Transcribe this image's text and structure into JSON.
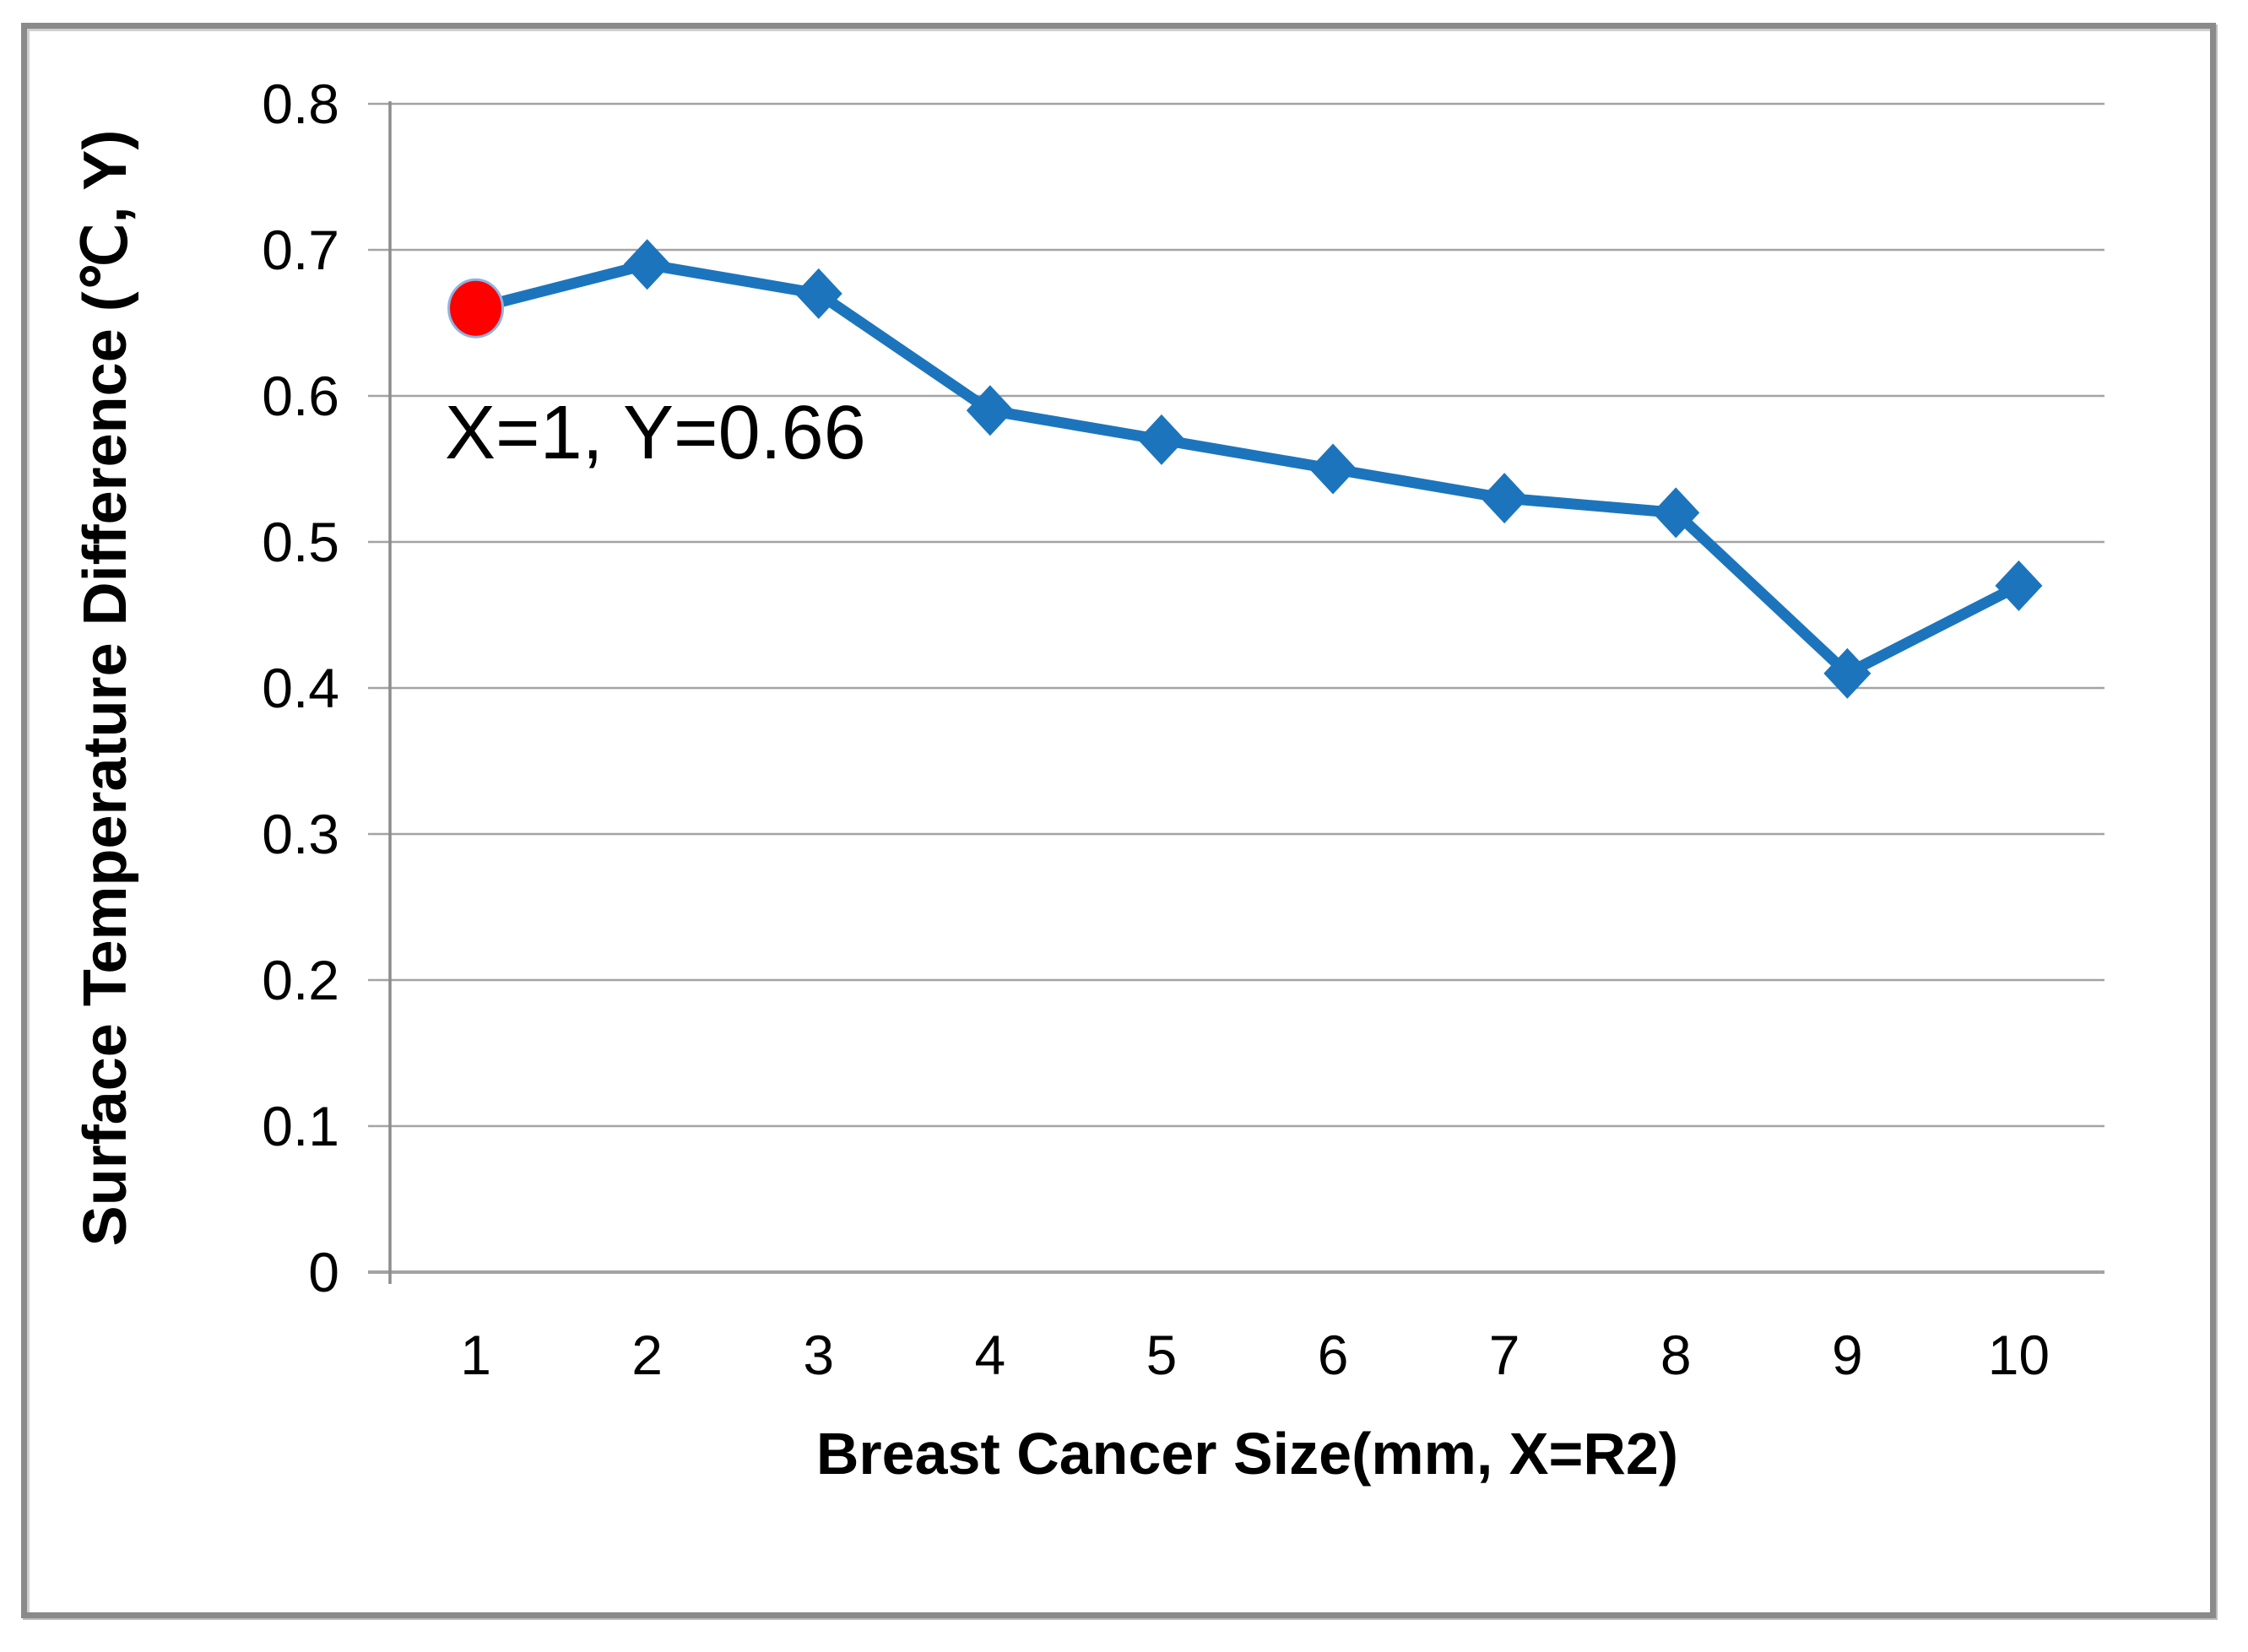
{
  "chart_data": {
    "type": "line",
    "title": "",
    "x": [
      1,
      2,
      3,
      4,
      5,
      6,
      7,
      8,
      9,
      10
    ],
    "values": [
      0.66,
      0.69,
      0.67,
      0.59,
      0.57,
      0.55,
      0.53,
      0.52,
      0.41,
      0.47
    ],
    "xlabel": "Breast Cancer Size(mm, X=R2)",
    "ylabel": "Surface Temperature Difference (℃, Y)",
    "ylim": [
      0,
      0.8
    ],
    "ytick_step": 0.1,
    "ytick_labels": [
      "0",
      "0.1",
      "0.2",
      "0.3",
      "0.4",
      "0.5",
      "0.6",
      "0.7",
      "0.8"
    ],
    "xtick_labels": [
      "1",
      "2",
      "3",
      "4",
      "5",
      "6",
      "7",
      "8",
      "9",
      "10"
    ],
    "grid": "horizontal-on",
    "legend_position": "none",
    "marker": "diamond",
    "colors": {
      "line": "#1c75bc",
      "marker": "#1c75bc",
      "highlight": "#fe0000",
      "highlight_halo": "#8db4e2",
      "gridline": "#a3a3a3",
      "axis": "#8c8c8c",
      "frame_border": "#8a8a8a",
      "text": "#000000"
    },
    "highlight_point": {
      "x": 1,
      "y": 0.66,
      "shape": "circle"
    },
    "annotation": {
      "text": "X=1, Y=0.66",
      "anchor_x": 1,
      "anchor_y": 0.66
    }
  }
}
